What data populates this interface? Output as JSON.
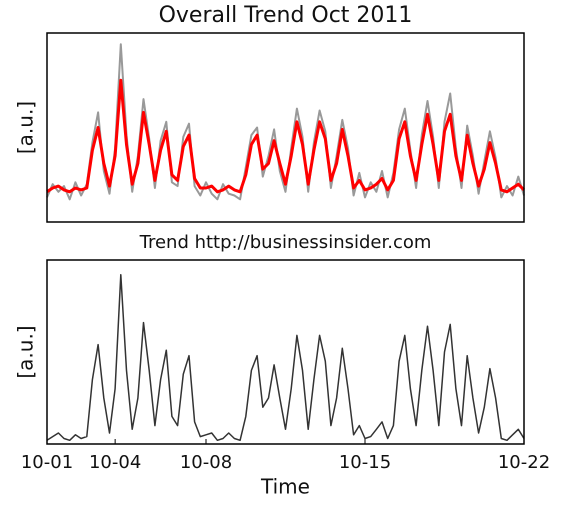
{
  "chart_data": [
    {
      "type": "line",
      "title": "Overall Trend Oct 2011",
      "y_label": "[a.u.]",
      "x": [
        1,
        1.25,
        1.5,
        1.75,
        2,
        2.25,
        2.5,
        2.75,
        3,
        3.25,
        3.5,
        3.75,
        4,
        4.25,
        4.5,
        4.75,
        5,
        5.25,
        5.5,
        5.75,
        6,
        6.25,
        6.5,
        6.75,
        7,
        7.25,
        7.5,
        7.75,
        8,
        8.25,
        8.5,
        8.75,
        9,
        9.25,
        9.5,
        9.75,
        10,
        10.25,
        10.5,
        10.75,
        11,
        11.25,
        11.5,
        11.75,
        12,
        12.25,
        12.5,
        12.75,
        13,
        13.25,
        13.5,
        13.75,
        14,
        14.25,
        14.5,
        14.75,
        15,
        15.25,
        15.5,
        15.75,
        16,
        16.25,
        16.5,
        16.75,
        17,
        17.25,
        17.5,
        17.75,
        18,
        18.25,
        18.5,
        18.75,
        19,
        19.25,
        19.5,
        19.75,
        20,
        20.25,
        20.5,
        20.75,
        21,
        21.25,
        21.5,
        21.75,
        22
      ],
      "series": [
        {
          "color": "#999999",
          "values": [
            1.3,
            2.0,
            1.6,
            1.9,
            1.2,
            2.1,
            1.4,
            2.0,
            4.2,
            5.8,
            2.7,
            1.5,
            3.9,
            9.4,
            4.6,
            1.6,
            3.5,
            6.5,
            4.4,
            1.8,
            4.3,
            5.3,
            2.1,
            1.9,
            4.5,
            5.2,
            1.9,
            1.4,
            2.1,
            1.5,
            1.2,
            2.0,
            1.5,
            1.4,
            1.2,
            2.9,
            4.6,
            5.0,
            2.4,
            3.5,
            4.9,
            2.7,
            1.6,
            3.9,
            6.0,
            4.5,
            1.6,
            4.2,
            5.9,
            4.8,
            1.8,
            3.5,
            5.4,
            3.9,
            1.4,
            2.6,
            1.3,
            2.1,
            1.6,
            2.7,
            1.3,
            2.6,
            4.9,
            6.0,
            3.8,
            1.8,
            4.6,
            6.4,
            4.5,
            1.8,
            5.3,
            6.8,
            3.9,
            1.8,
            5.1,
            3.5,
            1.5,
            3.2,
            4.8,
            3.4,
            1.3,
            1.9,
            1.4,
            2.4,
            1.4
          ]
        },
        {
          "color": "#ff0000",
          "values": [
            1.6,
            1.8,
            1.9,
            1.7,
            1.6,
            1.8,
            1.7,
            1.8,
            3.8,
            5.0,
            3.1,
            1.9,
            3.5,
            7.5,
            4.1,
            2.0,
            3.1,
            5.8,
            4.1,
            2.2,
            3.8,
            4.8,
            2.5,
            2.2,
            4.0,
            4.6,
            2.3,
            1.8,
            1.8,
            1.9,
            1.6,
            1.7,
            1.9,
            1.7,
            1.6,
            2.5,
            4.1,
            4.6,
            2.8,
            3.1,
            4.3,
            3.1,
            2.0,
            3.5,
            5.3,
            4.1,
            2.0,
            3.8,
            5.3,
            4.4,
            2.2,
            3.1,
            4.9,
            3.5,
            1.8,
            2.2,
            1.7,
            1.8,
            2.0,
            2.3,
            1.7,
            2.2,
            4.4,
            5.3,
            3.5,
            2.2,
            4.1,
            5.7,
            4.1,
            2.2,
            4.8,
            5.7,
            3.5,
            2.2,
            4.6,
            3.1,
            1.9,
            2.8,
            4.2,
            3.1,
            1.7,
            1.6,
            1.8,
            2.0,
            1.7
          ]
        }
      ],
      "xlim": [
        1,
        22
      ],
      "ylim": [
        0,
        10
      ]
    },
    {
      "type": "line",
      "title": "Trend http://businessinsider.com",
      "y_label": "[a.u.]",
      "x_label": "Time",
      "x": [
        1,
        1.25,
        1.5,
        1.75,
        2,
        2.25,
        2.5,
        2.75,
        3,
        3.25,
        3.5,
        3.75,
        4,
        4.25,
        4.5,
        4.75,
        5,
        5.25,
        5.5,
        5.75,
        6,
        6.25,
        6.5,
        6.75,
        7,
        7.25,
        7.5,
        7.75,
        8,
        8.25,
        8.5,
        8.75,
        9,
        9.25,
        9.5,
        9.75,
        10,
        10.25,
        10.5,
        10.75,
        11,
        11.25,
        11.5,
        11.75,
        12,
        12.25,
        12.5,
        12.75,
        13,
        13.25,
        13.5,
        13.75,
        14,
        14.25,
        14.5,
        14.75,
        15,
        15.25,
        15.5,
        15.75,
        16,
        16.25,
        16.5,
        16.75,
        17,
        17.25,
        17.5,
        17.75,
        18,
        18.25,
        18.5,
        18.75,
        19,
        19.25,
        19.5,
        19.75,
        20,
        20.25,
        20.5,
        20.75,
        21,
        21.25,
        21.5,
        21.75,
        22
      ],
      "series": [
        {
          "color": "#333333",
          "values": [
            0.2,
            0.4,
            0.6,
            0.3,
            0.2,
            0.5,
            0.3,
            0.4,
            3.5,
            5.4,
            2.5,
            0.6,
            3.0,
            9.2,
            4.0,
            0.8,
            2.5,
            6.6,
            4.0,
            1.0,
            3.5,
            5.1,
            1.5,
            1.0,
            3.8,
            4.8,
            1.2,
            0.4,
            0.5,
            0.6,
            0.2,
            0.3,
            0.6,
            0.3,
            0.2,
            1.5,
            4.0,
            4.8,
            2.0,
            2.5,
            4.3,
            2.5,
            0.8,
            3.0,
            5.9,
            4.0,
            0.8,
            3.5,
            5.9,
            4.5,
            1.0,
            2.5,
            5.2,
            3.0,
            0.5,
            1.0,
            0.3,
            0.4,
            0.8,
            1.2,
            0.3,
            1.0,
            4.5,
            5.9,
            3.0,
            1.0,
            4.0,
            6.4,
            4.0,
            1.0,
            5.0,
            6.5,
            3.0,
            1.0,
            4.8,
            2.5,
            0.6,
            2.0,
            4.1,
            2.5,
            0.3,
            0.2,
            0.5,
            0.8,
            0.3
          ]
        }
      ],
      "xlim": [
        1,
        22
      ],
      "ylim": [
        0,
        10
      ],
      "xticks": [
        {
          "value": 1,
          "label": "10-01"
        },
        {
          "value": 4,
          "label": "10-04"
        },
        {
          "value": 8,
          "label": "10-08"
        },
        {
          "value": 15,
          "label": "10-15"
        },
        {
          "value": 22,
          "label": "10-22"
        }
      ]
    }
  ]
}
